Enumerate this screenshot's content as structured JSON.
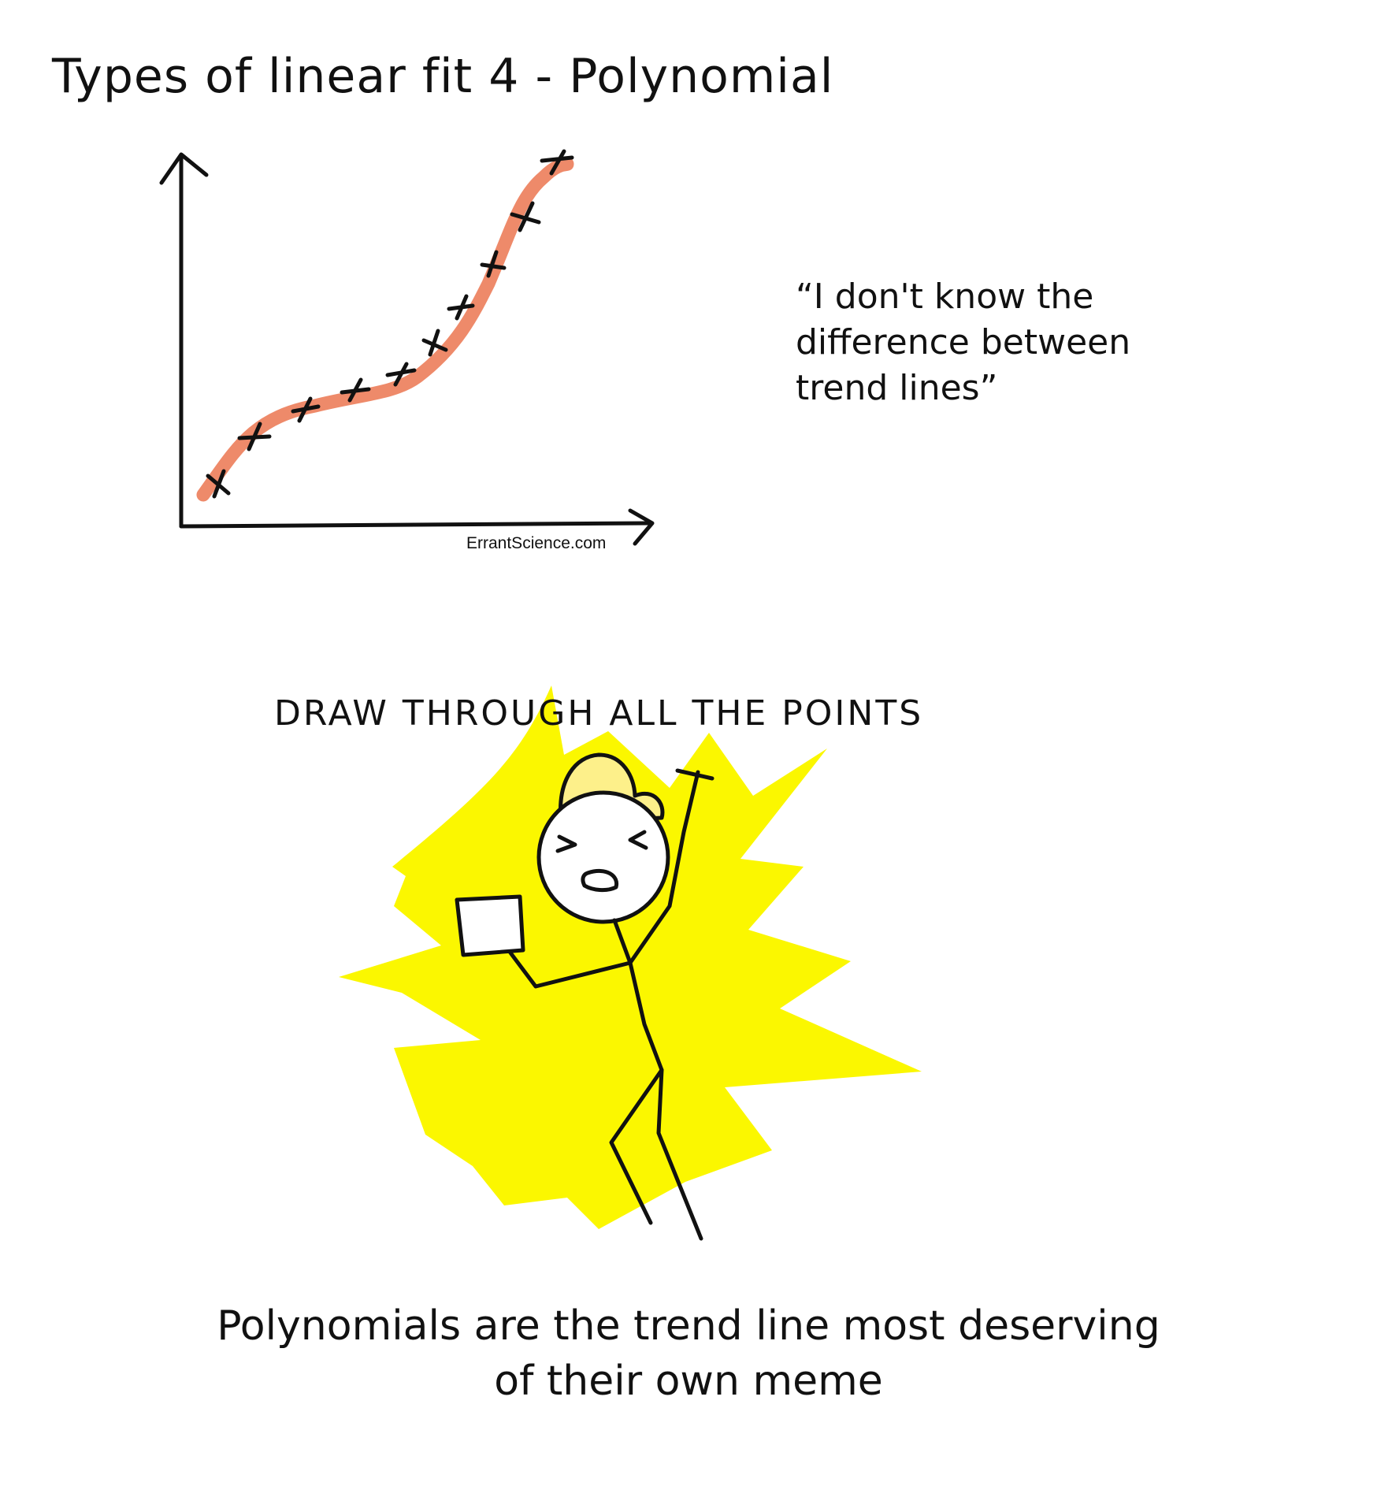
{
  "title": "Types of linear fit 4 - Polynomial",
  "quote": "“I don't know the\ndifference between\ntrend lines”",
  "credit": "ErrantScience.com",
  "shout": "DRAW THROUGH ALL THE POINTS",
  "caption": "Polynomials are the trend line most deserving\nof their own meme",
  "colors": {
    "trend_line": "#ee8a6a",
    "marks": "#111111",
    "burst": "#fbf700",
    "cap": "#fdf08a"
  },
  "icons": [
    "axis-arrow",
    "cross-mark",
    "stick-figure",
    "yellow-burst",
    "cap",
    "paper"
  ]
}
